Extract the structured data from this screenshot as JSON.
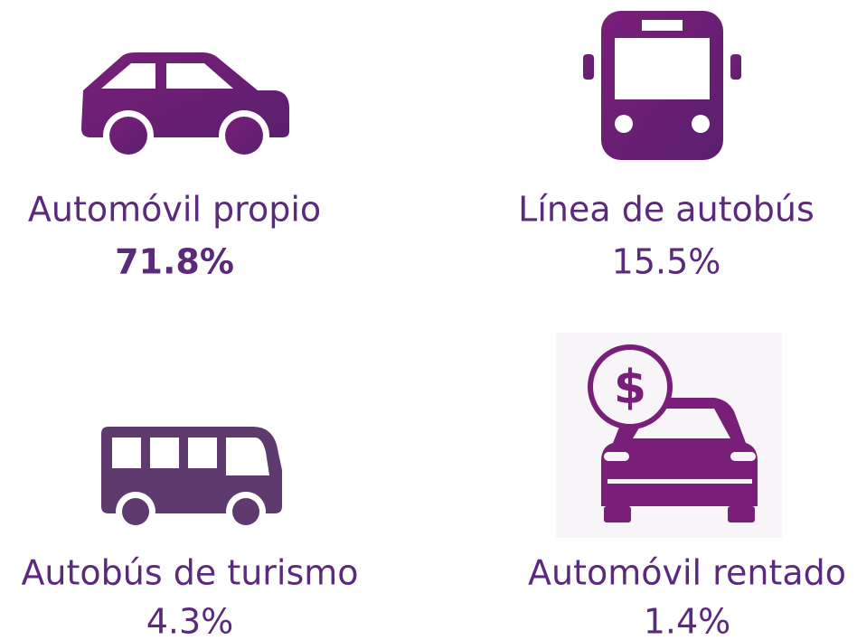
{
  "items": [
    {
      "label": "Automóvil propio",
      "value": "71.8%"
    },
    {
      "label": "Línea de autobús",
      "value": "15.5%"
    },
    {
      "label": "Autobús de turismo",
      "value": "4.3%"
    },
    {
      "label": "Automóvil rentado",
      "value": "1.4%"
    }
  ]
}
